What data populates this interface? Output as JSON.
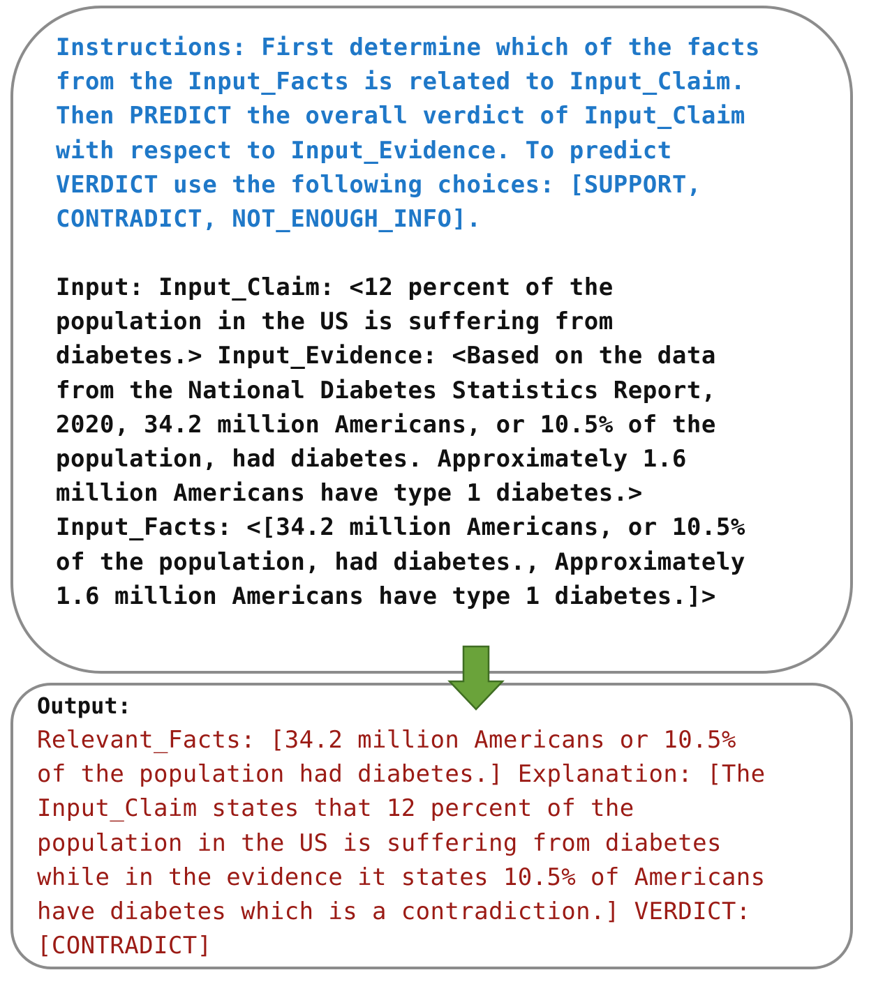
{
  "instructions": {
    "lines": [
      "Instructions: First determine which of the facts",
      "from the Input_Facts is related to Input_Claim.",
      "Then PREDICT the overall verdict of Input_Claim",
      "with respect to Input_Evidence. To predict",
      "VERDICT use the following choices: [SUPPORT,",
      "CONTRADICT, NOT_ENOUGH_INFO]."
    ]
  },
  "input": {
    "lines": [
      "Input: Input_Claim: <12 percent of the",
      "population in the US is suffering from",
      "diabetes.> Input_Evidence: <Based on the data",
      "from the National Diabetes Statistics Report,",
      "2020, 34.2 million Americans, or 10.5% of the",
      "population, had diabetes. Approximately 1.6",
      "million Americans have type 1 diabetes.>",
      "Input_Facts: <[34.2 million Americans, or 10.5%",
      "of the population, had diabetes., Approximately",
      "1.6 million Americans have type 1 diabetes.]>"
    ]
  },
  "output": {
    "label": "Output:",
    "lines": [
      "Relevant_Facts: [34.2 million Americans or 10.5%",
      "of the population had diabetes.] Explanation: [The",
      "Input_Claim states that 12 percent of the",
      "population in the US is suffering from diabetes",
      "while in the evidence it states 10.5% of Americans",
      "have diabetes which is a contradiction.] VERDICT:",
      "[CONTRADICT]"
    ]
  },
  "colors": {
    "instructions": "#1f78c8",
    "input": "#111111",
    "output": "#9b1b15",
    "border": "#8c8c8c",
    "arrow_fill": "#6aa33a",
    "arrow_stroke": "#3f6d22"
  },
  "icons": {
    "arrow": "down-arrow-icon"
  }
}
